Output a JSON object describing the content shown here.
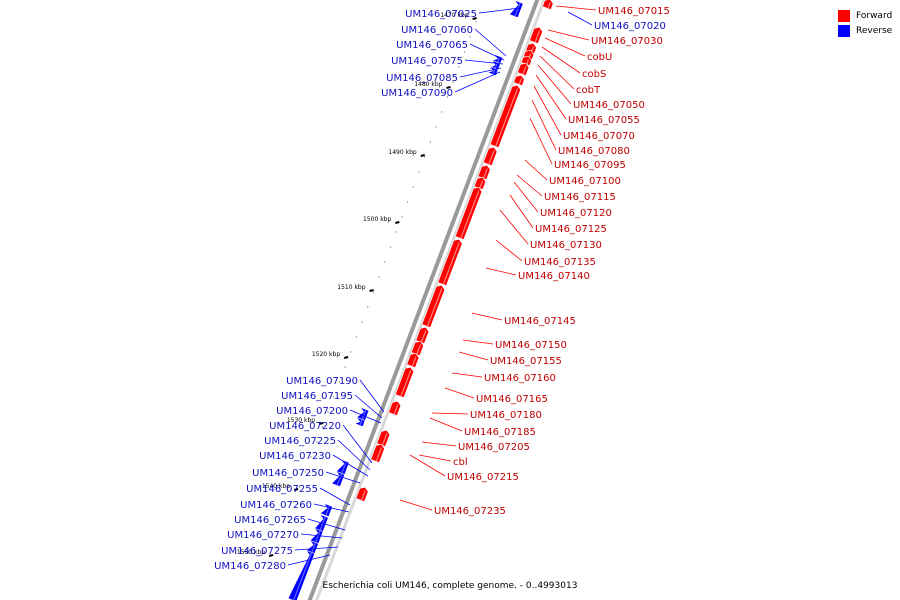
{
  "caption": "Escherichia coli UM146, complete genome. - 0..4993013",
  "legend": {
    "forward": {
      "label": "Forward",
      "color": "#ff0000"
    },
    "reverse": {
      "label": "Reverse",
      "color": "#0000ff"
    }
  },
  "ticks": [
    "1470 kbp",
    "1480 kbp",
    "1490 kbp",
    "1500 kbp",
    "1510 kbp",
    "1520 kbp",
    "1530 kbp",
    "1540 kbp",
    "1550 kbp"
  ],
  "forward_genes": [
    "UM146_07015",
    "UM146_07030",
    "cobU",
    "cobS",
    "cobT",
    "UM146_07050",
    "UM146_07055",
    "UM146_07070",
    "UM146_07080",
    "UM146_07095",
    "UM146_07100",
    "UM146_07115",
    "UM146_07120",
    "UM146_07125",
    "UM146_07130",
    "UM146_07135",
    "UM146_07140",
    "UM146_07145",
    "UM146_07150",
    "UM146_07155",
    "UM146_07160",
    "UM146_07165",
    "UM146_07180",
    "UM146_07185",
    "UM146_07205",
    "cbl",
    "UM146_07215",
    "UM146_07235"
  ],
  "reverse_genes": [
    "UM146_07020",
    "UM146_07025",
    "UM146_07060",
    "UM146_07065",
    "UM146_07075",
    "UM146_07085",
    "UM146_07090",
    "UM146_07190",
    "UM146_07195",
    "UM146_07200",
    "UM146_07220",
    "UM146_07225",
    "UM146_07230",
    "UM146_07250",
    "UM146_07255",
    "UM146_07260",
    "UM146_07265",
    "UM146_07270",
    "UM146_07275",
    "UM146_07280"
  ]
}
